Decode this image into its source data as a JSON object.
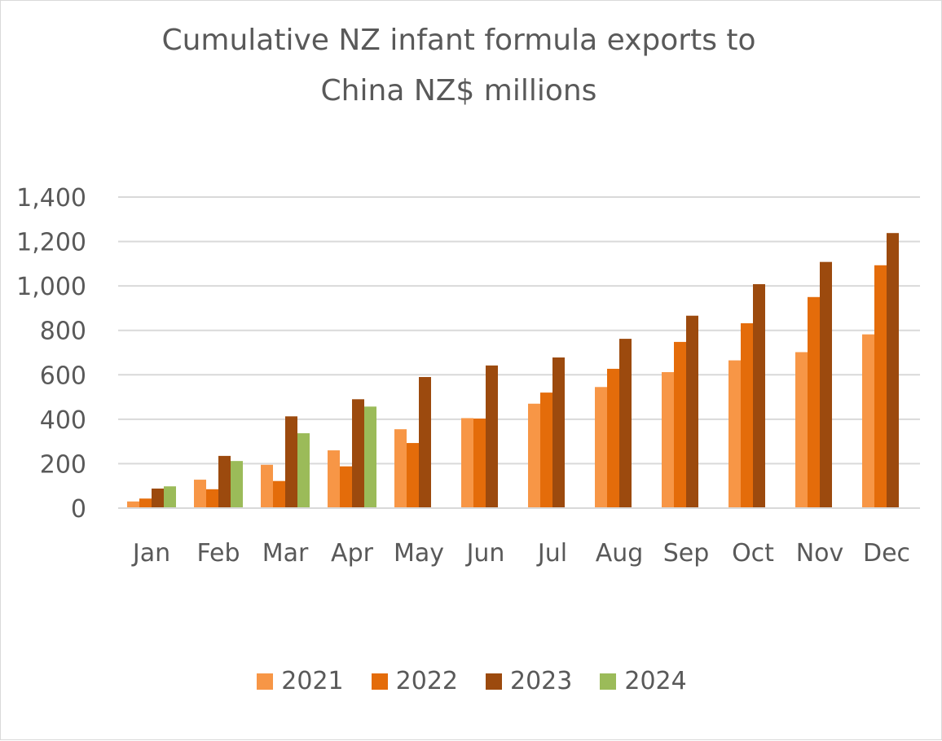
{
  "chart_data": {
    "type": "bar",
    "title": "Cumulative NZ infant formula exports to China  NZ$ millions",
    "title_lines": [
      "Cumulative NZ infant formula exports to",
      "China  NZ$ millions"
    ],
    "xlabel": "",
    "ylabel": "",
    "ylim": [
      0,
      1400
    ],
    "yticks": [
      0,
      200,
      400,
      600,
      800,
      1000,
      1200,
      1400
    ],
    "ytick_labels": [
      "0",
      "200",
      "400",
      "600",
      "800",
      "1,000",
      "1,200",
      "1,400"
    ],
    "grid": true,
    "legend_position": "bottom",
    "categories": [
      "Jan",
      "Feb",
      "Mar",
      "Apr",
      "May",
      "Jun",
      "Jul",
      "Aug",
      "Sep",
      "Oct",
      "Nov",
      "Dec"
    ],
    "series": [
      {
        "name": "2021",
        "color": "#F79646",
        "values": [
          30,
          128,
          195,
          260,
          355,
          405,
          470,
          545,
          612,
          665,
          702,
          782
        ]
      },
      {
        "name": "2022",
        "color": "#E46C0A",
        "values": [
          43,
          85,
          122,
          188,
          293,
          403,
          520,
          627,
          748,
          832,
          950,
          1093
        ]
      },
      {
        "name": "2023",
        "color": "#9C4A0E",
        "values": [
          88,
          235,
          413,
          490,
          590,
          642,
          678,
          762,
          866,
          1008,
          1108,
          1238
        ]
      },
      {
        "name": "2024",
        "color": "#9BBB59",
        "values": [
          98,
          212,
          337,
          457,
          null,
          null,
          null,
          null,
          null,
          null,
          null,
          null
        ]
      }
    ]
  }
}
